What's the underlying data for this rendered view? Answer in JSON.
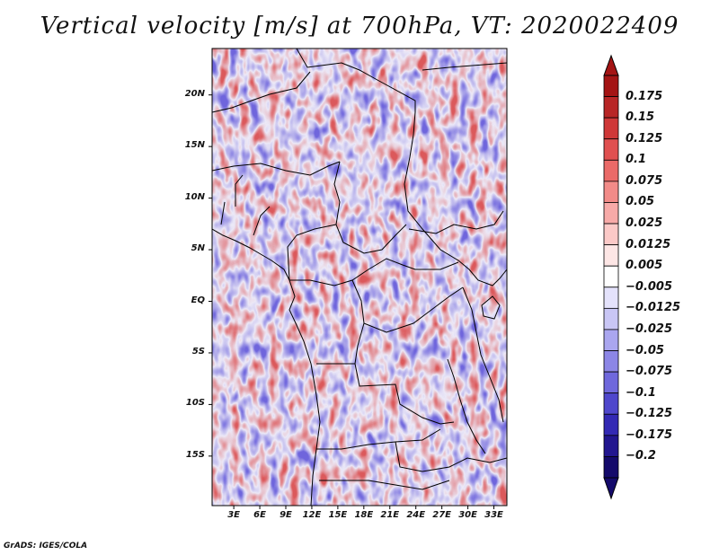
{
  "title": "Vertical velocity [m/s] at 700hPa, VT: 2020022409",
  "credit": "GrADS: IGES/COLA",
  "map": {
    "lat_labels": [
      "20N",
      "15N",
      "10N",
      "5N",
      "EQ",
      "5S",
      "10S",
      "15S"
    ],
    "lat_values": [
      20,
      15,
      10,
      5,
      0,
      -5,
      -10,
      -15
    ],
    "lon_labels": [
      "3E",
      "6E",
      "9E",
      "12E",
      "15E",
      "18E",
      "21E",
      "24E",
      "27E",
      "30E",
      "33E"
    ],
    "lon_values": [
      3,
      6,
      9,
      12,
      15,
      18,
      21,
      24,
      27,
      30,
      33
    ],
    "lat_range": [
      -19.8,
      24.5
    ],
    "lon_range": [
      0.5,
      34.5
    ]
  },
  "colorbar": {
    "labels": [
      "0.175",
      "0.15",
      "0.125",
      "0.1",
      "0.075",
      "0.05",
      "0.025",
      "0.0125",
      "0.005",
      "−0.005",
      "−0.0125",
      "−0.025",
      "−0.05",
      "−0.075",
      "−0.1",
      "−0.125",
      "−0.175",
      "−0.2"
    ],
    "colors": [
      "#a41414",
      "#b82626",
      "#cf3838",
      "#e05050",
      "#ea6a68",
      "#f28b88",
      "#f7aaa8",
      "#fbc9c7",
      "#fde6e5",
      "#ffffff",
      "#e4e2fb",
      "#c9c6f5",
      "#aaa6ef",
      "#8c86e6",
      "#6f68dc",
      "#4f47cc",
      "#3329b4",
      "#22168f",
      "#140a6b"
    ]
  },
  "icons": {
    "colorbar_top": "triangle-up-icon",
    "colorbar_bottom": "triangle-down-icon"
  }
}
